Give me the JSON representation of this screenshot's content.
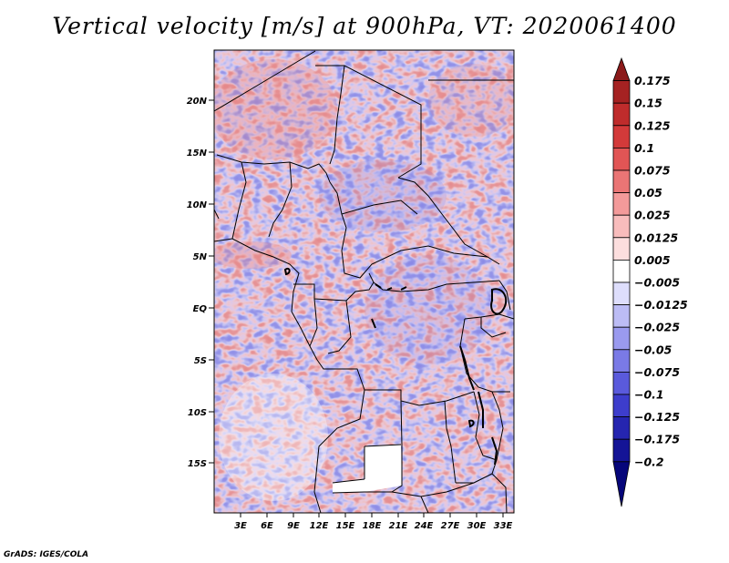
{
  "title": "Vertical velocity [m/s] at 900hPa, VT: 2020061400",
  "footer": "GrADS: IGES/COLA",
  "map": {
    "region": "Central Africa",
    "lon_range": [
      0.5,
      34.5
    ],
    "lat_range": [
      -20,
      25
    ],
    "lat_ticks": [
      "20N",
      "15N",
      "10N",
      "5N",
      "EQ",
      "5S",
      "10S",
      "15S"
    ],
    "lat_values": [
      20,
      15,
      10,
      5,
      0,
      -5,
      -10,
      -15
    ],
    "lon_ticks": [
      "3E",
      "6E",
      "9E",
      "12E",
      "15E",
      "18E",
      "21E",
      "24E",
      "27E",
      "30E",
      "33E"
    ],
    "lon_values": [
      3,
      6,
      9,
      12,
      15,
      18,
      21,
      24,
      27,
      30,
      33
    ],
    "field": "vertical velocity",
    "level": "900hPa",
    "units": "m/s"
  },
  "colorbar": {
    "labels": [
      "0.175",
      "0.15",
      "0.125",
      "0.1",
      "0.075",
      "0.05",
      "0.025",
      "0.0125",
      "0.005",
      "−0.005",
      "−0.0125",
      "−0.025",
      "−0.05",
      "−0.075",
      "−0.1",
      "−0.125",
      "−0.175",
      "−0.2"
    ],
    "colors": [
      "#8b1a1a",
      "#a52222",
      "#bf2c2c",
      "#d33a3a",
      "#e15555",
      "#ea7575",
      "#f39a9a",
      "#f8bcbc",
      "#fcdede",
      "#ffffff",
      "#dedefc",
      "#bcbcf5",
      "#9a9aef",
      "#7a7ae6",
      "#5a5adc",
      "#3d3dcc",
      "#2525b0",
      "#141496",
      "#06067a"
    ]
  }
}
